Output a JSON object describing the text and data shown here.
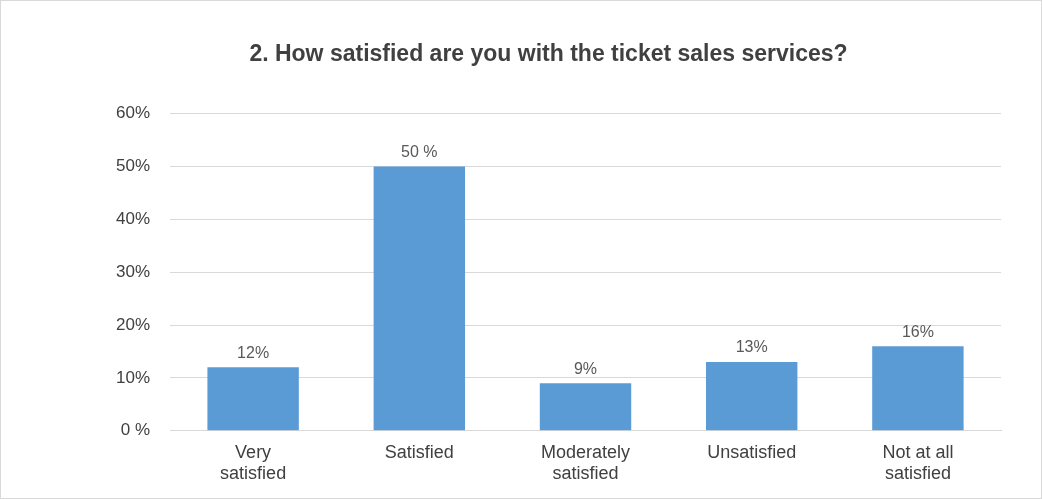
{
  "chart_data": {
    "type": "bar",
    "title": "2. How satisfied are you with the ticket sales services?",
    "categories": [
      "Very satisfied",
      "Satisfied",
      "Moderately satisfied",
      "Unsatisfied",
      "Not at all satisfied"
    ],
    "values": [
      12,
      50,
      9,
      13,
      16
    ],
    "color": "#5b9bd5",
    "value_labels": [
      "12%",
      "50 %",
      "9%",
      "13%",
      "16%"
    ],
    "ylim": [
      0,
      60
    ],
    "yticks": [
      {
        "value": 0,
        "label": "0 %"
      },
      {
        "value": 10,
        "label": "10%"
      },
      {
        "value": 20,
        "label": "20%"
      },
      {
        "value": 30,
        "label": "30%"
      },
      {
        "value": 40,
        "label": "40%"
      },
      {
        "value": 50,
        "label": "50%"
      },
      {
        "value": 60,
        "label": "60%"
      }
    ],
    "grid": "y",
    "legend": false
  }
}
